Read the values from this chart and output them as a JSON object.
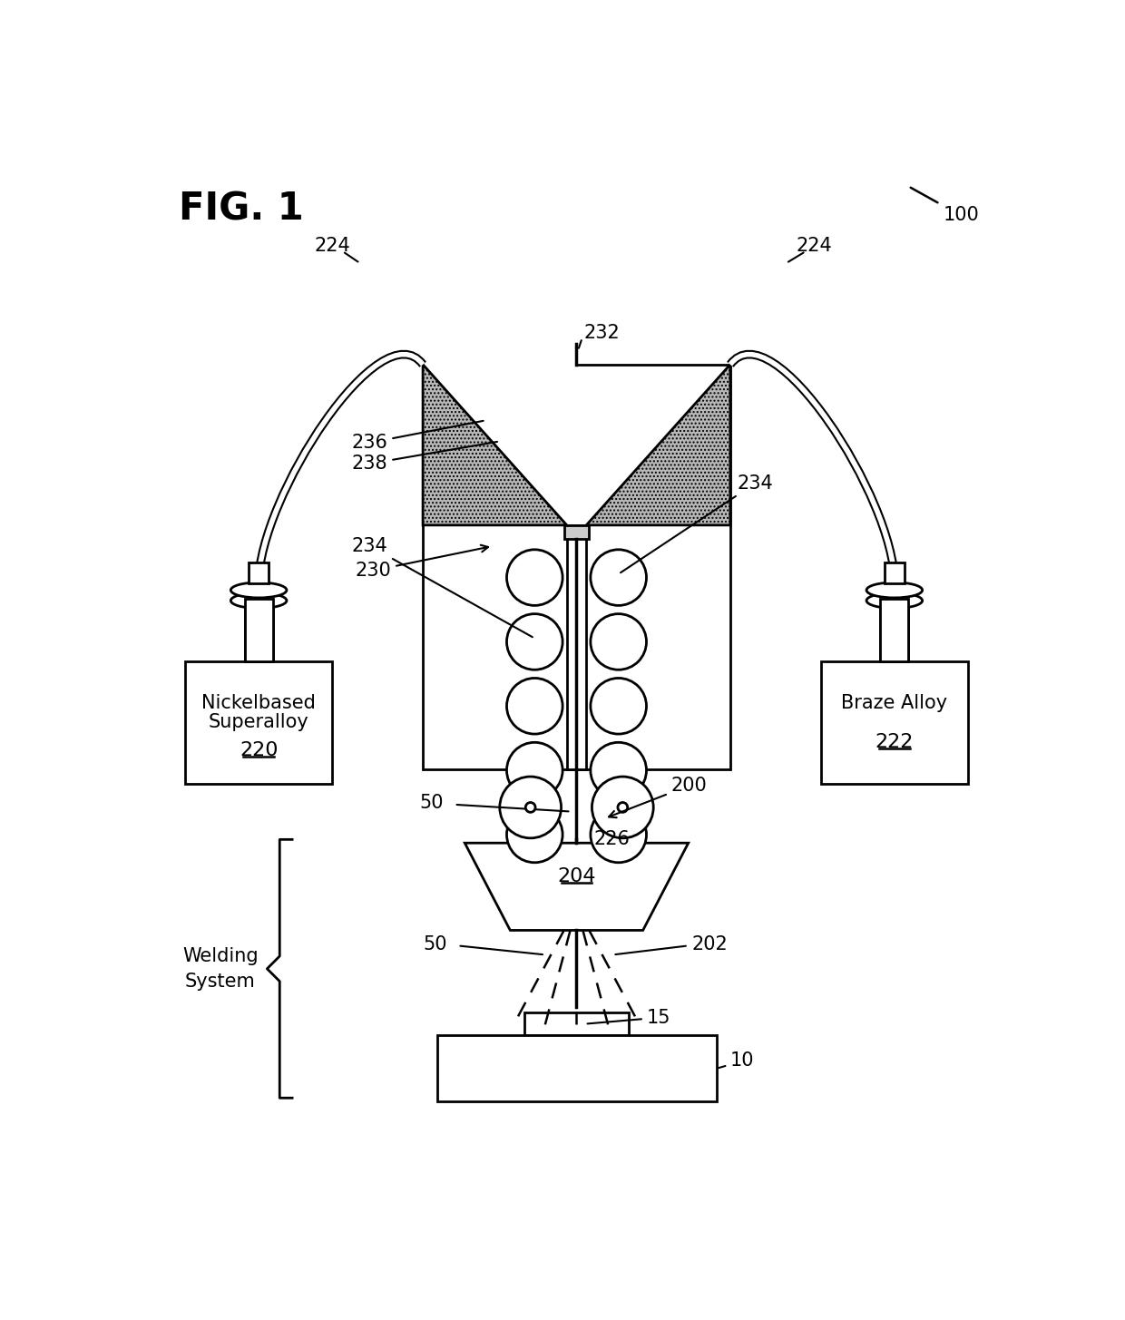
{
  "bg_color": "#ffffff",
  "line_color": "#000000",
  "title": "FIG. 1",
  "labels": {
    "100": "100",
    "224": "224",
    "232": "232",
    "236": "236",
    "238": "238",
    "234": "234",
    "230": "230",
    "226": "226",
    "50": "50",
    "200": "200",
    "204": "204",
    "202": "202",
    "15": "15",
    "10": "10",
    "220": "220",
    "222": "222",
    "nickel1": "Nickelbased",
    "nickel2": "Superalloy",
    "braze": "Braze Alloy",
    "welding": "Welding System"
  }
}
